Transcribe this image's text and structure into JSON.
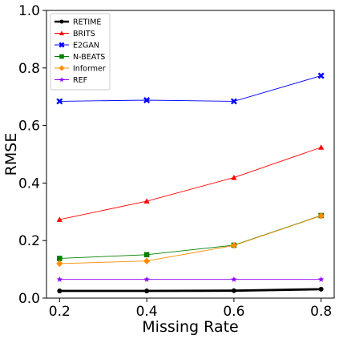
{
  "chart_data": {
    "type": "line",
    "title": "",
    "xlabel": "Missing Rate",
    "ylabel": "RMSE",
    "x": [
      0.2,
      0.4,
      0.6,
      0.8
    ],
    "x_tick_labels": [
      "0.2",
      "0.4",
      "0.6",
      "0.8"
    ],
    "xlim": [
      0.17,
      0.83
    ],
    "ylim": [
      0.0,
      1.0
    ],
    "y_ticks": [
      0.0,
      0.2,
      0.4,
      0.6,
      0.8,
      1.0
    ],
    "y_tick_labels": [
      "0.0",
      "0.2",
      "0.4",
      "0.6",
      "0.8",
      "1.0"
    ],
    "grid": false,
    "legend_position": "top-left",
    "series": [
      {
        "name": "RETIME",
        "values": [
          0.025,
          0.025,
          0.026,
          0.031
        ],
        "color": "#000000",
        "marker": "circle"
      },
      {
        "name": "BRITS",
        "values": [
          0.273,
          0.337,
          0.419,
          0.524
        ],
        "color": "#ff0000",
        "marker": "triangle"
      },
      {
        "name": "E2GAN",
        "values": [
          0.684,
          0.688,
          0.684,
          0.773
        ],
        "color": "#0000ff",
        "marker": "x"
      },
      {
        "name": "N-BEATS",
        "values": [
          0.138,
          0.151,
          0.184,
          0.287
        ],
        "color": "#008000",
        "marker": "square"
      },
      {
        "name": "Informer",
        "values": [
          0.12,
          0.129,
          0.183,
          0.286
        ],
        "color": "#ff8c00",
        "marker": "diamond"
      },
      {
        "name": "REF",
        "values": [
          0.065,
          0.065,
          0.065,
          0.065
        ],
        "color": "#8b00ff",
        "marker": "star"
      }
    ]
  }
}
